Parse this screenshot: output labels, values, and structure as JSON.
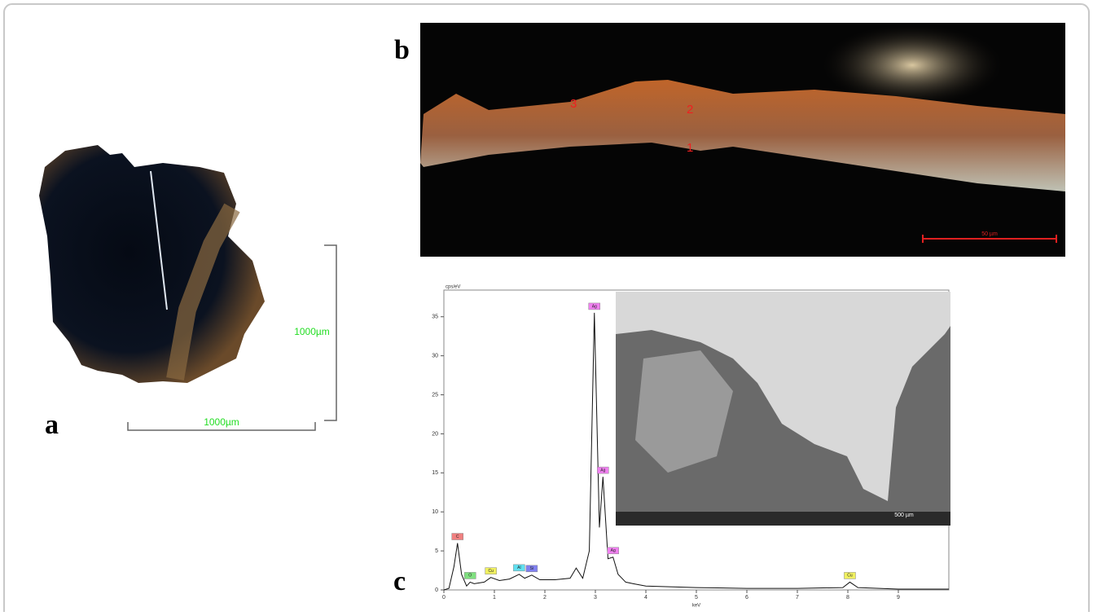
{
  "panel_a": {
    "label": "a",
    "scale_vertical": "1000µm",
    "scale_horizontal": "1000µm"
  },
  "panel_b": {
    "label": "b",
    "layers": [
      "3",
      "2",
      "1"
    ],
    "scale": "50 µm"
  },
  "panel_c": {
    "label": "c",
    "inset_scale": "500 µm",
    "spectrum": {
      "type": "line",
      "ylabel": "cps/eV",
      "xlabel": "keV",
      "color": "#111111",
      "x": [
        0,
        0.1,
        0.2,
        0.27,
        0.35,
        0.45,
        0.52,
        0.6,
        0.8,
        0.93,
        1.1,
        1.3,
        1.49,
        1.6,
        1.74,
        1.9,
        2.2,
        2.5,
        2.62,
        2.75,
        2.88,
        2.98,
        3.08,
        3.15,
        3.25,
        3.35,
        3.45,
        3.6,
        3.75,
        4,
        5,
        6,
        7,
        7.9,
        8.04,
        8.2,
        9,
        10
      ],
      "values": [
        0,
        0.2,
        3,
        6,
        2,
        0.5,
        1,
        0.8,
        1,
        1.6,
        1.2,
        1.4,
        2,
        1.5,
        1.9,
        1.3,
        1.3,
        1.5,
        2.8,
        1.5,
        5,
        35.5,
        8,
        14.5,
        4,
        4.2,
        2,
        1,
        0.8,
        0.5,
        0.3,
        0.2,
        0.2,
        0.3,
        1,
        0.3,
        0.1,
        0.1
      ],
      "xlim": [
        0,
        10
      ],
      "ylim": [
        0,
        38
      ],
      "xticks": [
        0,
        1,
        2,
        3,
        4,
        5,
        6,
        7,
        8,
        9
      ],
      "yticks": [
        0,
        5,
        10,
        15,
        20,
        25,
        30,
        35
      ],
      "peaks": [
        {
          "label": "C",
          "x": 0.27,
          "y": 6,
          "color": "#f08080"
        },
        {
          "label": "O",
          "x": 0.52,
          "y": 1,
          "color": "#80e080"
        },
        {
          "label": "Cu",
          "x": 0.93,
          "y": 1.6,
          "color": "#f0f060"
        },
        {
          "label": "Al",
          "x": 1.49,
          "y": 2,
          "color": "#60e0f0"
        },
        {
          "label": "Si",
          "x": 1.74,
          "y": 1.9,
          "color": "#8080f0"
        },
        {
          "label": "Ag",
          "x": 2.98,
          "y": 35.5,
          "color": "#f080f0"
        },
        {
          "label": "Ag",
          "x": 3.15,
          "y": 14.5,
          "color": "#f080f0"
        },
        {
          "label": "Ag",
          "x": 3.35,
          "y": 4.2,
          "color": "#f080f0"
        },
        {
          "label": "Cu",
          "x": 8.04,
          "y": 1,
          "color": "#f0f060"
        }
      ]
    }
  }
}
